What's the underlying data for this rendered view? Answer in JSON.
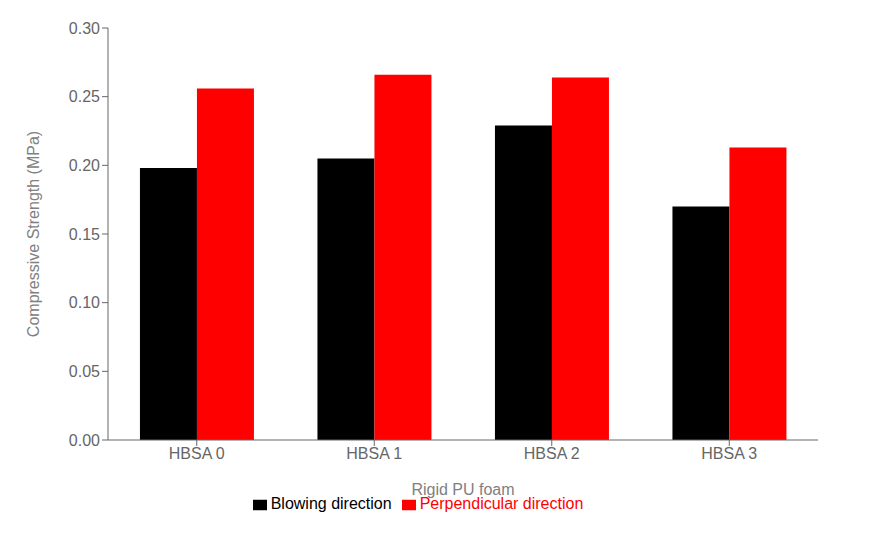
{
  "chart_data": {
    "type": "bar",
    "xlabel": "Rigid PU foam",
    "ylabel": "Compressive Strength (MPa)",
    "categories": [
      "HBSA 0",
      "HBSA 1",
      "HBSA 2",
      "HBSA 3"
    ],
    "series": [
      {
        "name": "Blowing direction",
        "color": "#000000",
        "values": [
          0.198,
          0.205,
          0.229,
          0.17
        ]
      },
      {
        "name": "Perpendicular direction",
        "color": "#ff0000",
        "values": [
          0.256,
          0.266,
          0.264,
          0.213
        ]
      }
    ],
    "ylim": [
      0.0,
      0.3
    ],
    "yticks": [
      {
        "value": 0.0,
        "label": "0.00"
      },
      {
        "value": 0.05,
        "label": "0.05"
      },
      {
        "value": 0.1,
        "label": "0.10"
      },
      {
        "value": 0.15,
        "label": "0.15"
      },
      {
        "value": 0.2,
        "label": "0.20"
      },
      {
        "value": 0.25,
        "label": "0.25"
      },
      {
        "value": 0.3,
        "label": "0.30"
      }
    ],
    "grid": false,
    "legend": "bottom"
  }
}
